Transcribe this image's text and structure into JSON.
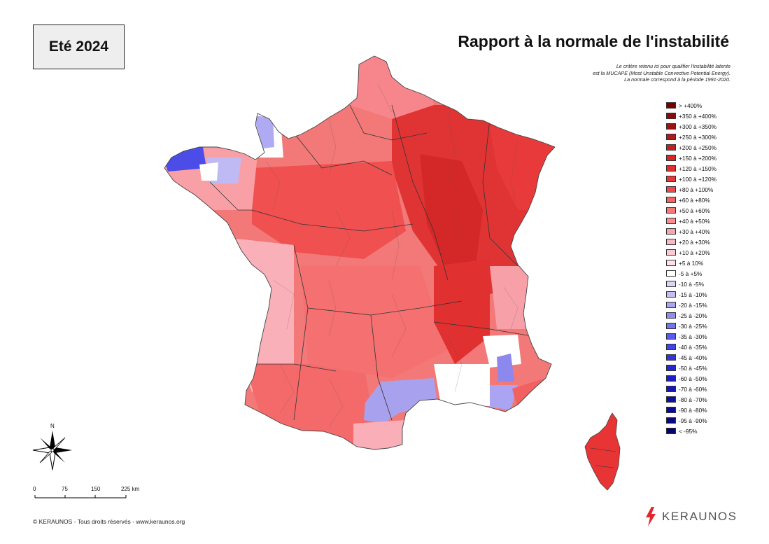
{
  "season": "Eté 2024",
  "title": "Rapport à la normale de l'instabilité",
  "subtitle_lines": [
    "Le critère retenu ici pour qualifier l'instabilité latente",
    "est la MUCAPE (Most Unstable Convective Potential Energy).",
    "La normale correspond à la période 1991-2020."
  ],
  "legend": [
    {
      "label": "> +400%",
      "color": "#7a0000"
    },
    {
      "label": "+350 à +400%",
      "color": "#8c0a0a"
    },
    {
      "label": "+300 à +350%",
      "color": "#9e1212"
    },
    {
      "label": "+250 à +300%",
      "color": "#b01a1a"
    },
    {
      "label": "+200 à +250%",
      "color": "#c42020"
    },
    {
      "label": "+150 à +200%",
      "color": "#d42828"
    },
    {
      "label": "+120 à +150%",
      "color": "#e02e2e"
    },
    {
      "label": "+100 à +120%",
      "color": "#ea3636"
    },
    {
      "label": "+80 à +100%",
      "color": "#f04848"
    },
    {
      "label": "+60 à +80%",
      "color": "#f46262"
    },
    {
      "label": "+50 à +60%",
      "color": "#f77878"
    },
    {
      "label": "+40 à +50%",
      "color": "#f98e92"
    },
    {
      "label": "+30 à +40%",
      "color": "#f9a4aa"
    },
    {
      "label": "+20 à +30%",
      "color": "#fab8c0"
    },
    {
      "label": "+10 à +20%",
      "color": "#fbcad4"
    },
    {
      "label": "+5 à 10%",
      "color": "#fde0ea"
    },
    {
      "label": "-5 à +5%",
      "color": "#ffffff"
    },
    {
      "label": "-10 à -5%",
      "color": "#dcd4f6"
    },
    {
      "label": "-15 à -10%",
      "color": "#c4bcf4"
    },
    {
      "label": "-20 à -15%",
      "color": "#aaa4f2"
    },
    {
      "label": "-25 à -20%",
      "color": "#908cf0"
    },
    {
      "label": "-30 à -25%",
      "color": "#7474ee"
    },
    {
      "label": "-35 à -30%",
      "color": "#5a5aea"
    },
    {
      "label": "-40 à -35%",
      "color": "#4444e4"
    },
    {
      "label": "-45 à -40%",
      "color": "#3434dc"
    },
    {
      "label": "-50 à -45%",
      "color": "#2828d0"
    },
    {
      "label": "-60 à -50%",
      "color": "#1e1ec4"
    },
    {
      "label": "-70 à -60%",
      "color": "#1616b4"
    },
    {
      "label": "-80 à -70%",
      "color": "#1010a2"
    },
    {
      "label": "-90 à -80%",
      "color": "#0c0c92"
    },
    {
      "label": "-95 à -90%",
      "color": "#080882"
    },
    {
      "label": "< -95%",
      "color": "#040470"
    }
  ],
  "north_label": "N",
  "scale_labels": [
    "0",
    "75",
    "150",
    "225 km"
  ],
  "copyright": "© KERAUNOS - Tous droits réservés - www.keraunos.org",
  "logo_text": "KERAUNOS"
}
